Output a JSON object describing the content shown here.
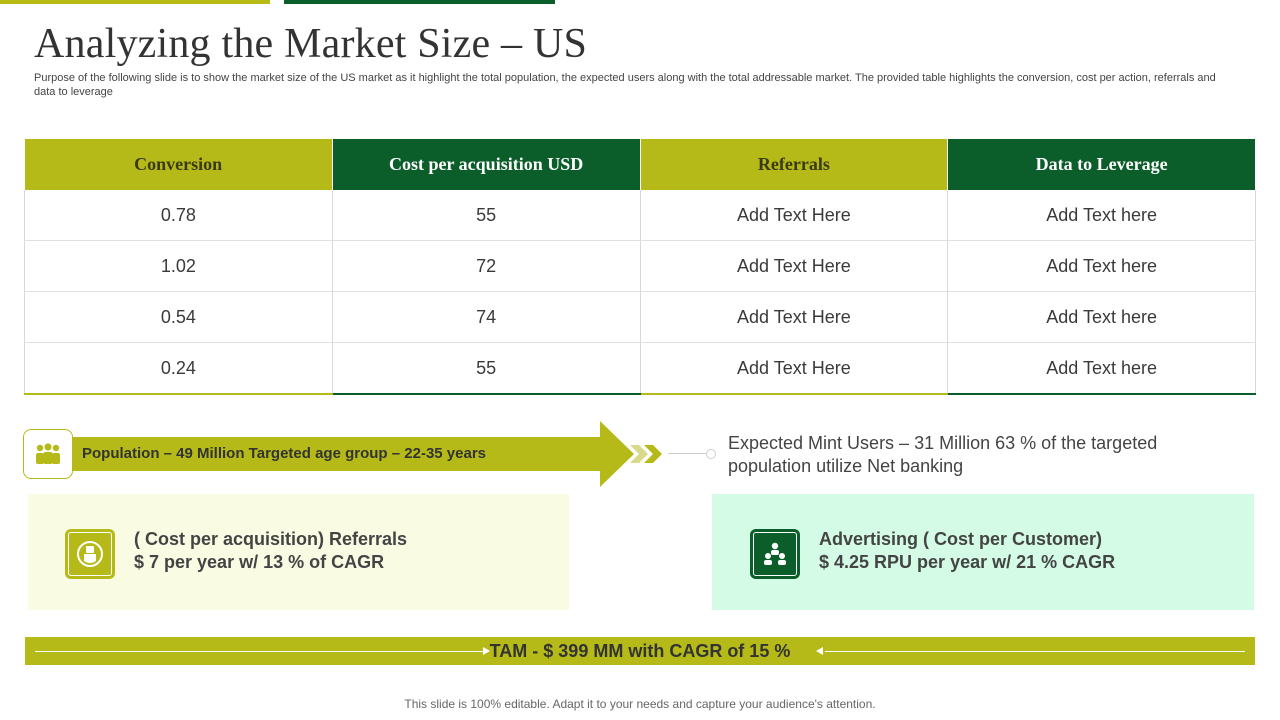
{
  "title": "Analyzing the Market Size – US",
  "subtitle": "Purpose of the following slide is to show the market size of the US market as it highlight the total population, the expected users along with the total addressable market. The provided table highlights the conversion, cost per action, referrals and data to leverage",
  "table": {
    "headers": [
      "Conversion",
      "Cost per acquisition USD",
      "Referrals",
      "Data to Leverage"
    ],
    "rows": [
      [
        "0.78",
        "55",
        "Add Text Here",
        "Add Text here"
      ],
      [
        "1.02",
        "72",
        "Add Text Here",
        "Add Text here"
      ],
      [
        "0.54",
        "74",
        "Add Text Here",
        "Add Text here"
      ],
      [
        "0.24",
        "55",
        "Add Text Here",
        "Add Text here"
      ]
    ]
  },
  "population": {
    "text": "Population – 49 Million  Targeted age group – 22-35 years",
    "icon": "people-group-icon"
  },
  "mint_users": {
    "line1": "Expected Mint Users – 31 Million 63 % of the targeted",
    "line2": "population utilize Net banking"
  },
  "referrals_box": {
    "line1": "( Cost per acquisition) Referrals",
    "line2": "$ 7 per year w/ 13 % of CAGR",
    "icon": "hand-money-icon"
  },
  "advertising_box": {
    "line1": "Advertising ( Cost per Customer)",
    "line2": "$ 4.25 RPU per year w/ 21 % CAGR",
    "icon": "team-icon"
  },
  "tam": {
    "text": "TAM - $ 399 MM with CAGR of 15 %"
  },
  "footer": "This slide is 100% editable. Adapt it to your needs and capture your audience's attention.",
  "colors": {
    "lime": "#b5ba18",
    "dark_green": "#0b5e2a",
    "light_yellow": "#fafbe3",
    "light_mint": "#d3fbe5"
  }
}
